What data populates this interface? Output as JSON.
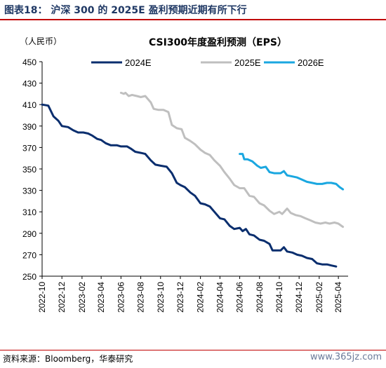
{
  "header": {
    "figure_title": "图表18： 沪深 300 的 2025E 盈利预期近期有所下行"
  },
  "footer": {
    "source": "资料来源：Bloomberg，华泰研究",
    "watermark": "www.365jz.com"
  },
  "colors": {
    "title_rule": "#c00000",
    "series_2024E": "#0a2e6e",
    "series_2025E": "#bfbfbf",
    "series_2026E": "#1aa7e0"
  },
  "chart_data": {
    "type": "line",
    "title": "CSI300年度盈利预测（EPS）",
    "unit": "（人民币）",
    "xlabel": "",
    "ylabel": "",
    "ylim": [
      250,
      450
    ],
    "yticks": [
      "450",
      "430",
      "410",
      "390",
      "370",
      "350",
      "330",
      "310",
      "290",
      "270",
      "250"
    ],
    "xticks": [
      "2022-10",
      "2022-12",
      "2023-02",
      "2023-04",
      "2023-06",
      "2023-08",
      "2023-10",
      "2023-12",
      "2024-02",
      "2024-04",
      "2024-06",
      "2024-08",
      "2024-10",
      "2024-12",
      "2025-02",
      "2025-04"
    ],
    "legend_position": "top",
    "grid": false,
    "series": [
      {
        "name": "2024E",
        "color": "#0a2e6e",
        "points": [
          [
            "2022-10-01",
            410
          ],
          [
            "2022-10-20",
            409
          ],
          [
            "2022-11-05",
            399
          ],
          [
            "2022-11-20",
            395
          ],
          [
            "2022-12-01",
            390
          ],
          [
            "2022-12-20",
            389
          ],
          [
            "2023-01-05",
            386
          ],
          [
            "2023-01-20",
            384
          ],
          [
            "2023-02-05",
            384
          ],
          [
            "2023-02-20",
            383
          ],
          [
            "2023-03-05",
            381
          ],
          [
            "2023-03-20",
            378
          ],
          [
            "2023-04-01",
            377
          ],
          [
            "2023-04-15",
            374
          ],
          [
            "2023-05-01",
            372
          ],
          [
            "2023-05-20",
            372
          ],
          [
            "2023-06-01",
            371
          ],
          [
            "2023-06-20",
            371
          ],
          [
            "2023-07-01",
            369
          ],
          [
            "2023-07-15",
            366
          ],
          [
            "2023-08-01",
            365
          ],
          [
            "2023-08-15",
            364
          ],
          [
            "2023-09-01",
            358
          ],
          [
            "2023-09-15",
            354
          ],
          [
            "2023-10-01",
            353
          ],
          [
            "2023-10-20",
            352
          ],
          [
            "2023-11-05",
            346
          ],
          [
            "2023-11-20",
            337
          ],
          [
            "2023-12-01",
            335
          ],
          [
            "2023-12-15",
            333
          ],
          [
            "2024-01-01",
            328
          ],
          [
            "2024-01-15",
            325
          ],
          [
            "2024-02-01",
            318
          ],
          [
            "2024-02-15",
            317
          ],
          [
            "2024-03-01",
            315
          ],
          [
            "2024-03-15",
            310
          ],
          [
            "2024-04-01",
            304
          ],
          [
            "2024-04-15",
            303
          ],
          [
            "2024-05-01",
            297
          ],
          [
            "2024-05-15",
            294
          ],
          [
            "2024-06-01",
            295
          ],
          [
            "2024-06-10",
            292
          ],
          [
            "2024-06-20",
            294
          ],
          [
            "2024-07-01",
            289
          ],
          [
            "2024-07-15",
            288
          ],
          [
            "2024-08-01",
            284
          ],
          [
            "2024-08-15",
            283
          ],
          [
            "2024-09-01",
            280
          ],
          [
            "2024-09-10",
            274
          ],
          [
            "2024-09-25",
            274
          ],
          [
            "2024-10-05",
            274
          ],
          [
            "2024-10-15",
            277
          ],
          [
            "2024-10-25",
            273
          ],
          [
            "2024-11-10",
            272
          ],
          [
            "2024-11-25",
            270
          ],
          [
            "2024-12-10",
            269
          ],
          [
            "2024-12-25",
            267
          ],
          [
            "2025-01-10",
            266
          ],
          [
            "2025-01-25",
            262
          ],
          [
            "2025-02-10",
            261
          ],
          [
            "2025-02-25",
            261
          ],
          [
            "2025-03-10",
            260
          ],
          [
            "2025-03-25",
            259
          ]
        ]
      },
      {
        "name": "2025E",
        "color": "#bfbfbf",
        "points": [
          [
            "2023-06-01",
            421
          ],
          [
            "2023-06-10",
            420
          ],
          [
            "2023-06-15",
            421
          ],
          [
            "2023-06-25",
            418
          ],
          [
            "2023-07-05",
            419
          ],
          [
            "2023-07-20",
            418
          ],
          [
            "2023-08-01",
            417
          ],
          [
            "2023-08-15",
            418
          ],
          [
            "2023-09-01",
            412
          ],
          [
            "2023-09-10",
            406
          ],
          [
            "2023-09-25",
            405
          ],
          [
            "2023-10-10",
            405
          ],
          [
            "2023-10-25",
            403
          ],
          [
            "2023-11-05",
            391
          ],
          [
            "2023-11-20",
            388
          ],
          [
            "2023-12-05",
            387
          ],
          [
            "2023-12-15",
            379
          ],
          [
            "2024-01-01",
            376
          ],
          [
            "2024-01-15",
            373
          ],
          [
            "2024-02-01",
            368
          ],
          [
            "2024-02-15",
            365
          ],
          [
            "2024-03-01",
            363
          ],
          [
            "2024-03-15",
            358
          ],
          [
            "2024-04-01",
            353
          ],
          [
            "2024-04-15",
            347
          ],
          [
            "2024-05-01",
            341
          ],
          [
            "2024-05-15",
            335
          ],
          [
            "2024-06-01",
            332
          ],
          [
            "2024-06-15",
            332
          ],
          [
            "2024-07-01",
            325
          ],
          [
            "2024-07-15",
            324
          ],
          [
            "2024-08-01",
            318
          ],
          [
            "2024-08-15",
            316
          ],
          [
            "2024-09-01",
            311
          ],
          [
            "2024-09-15",
            308
          ],
          [
            "2024-10-01",
            310
          ],
          [
            "2024-10-10",
            308
          ],
          [
            "2024-10-25",
            313
          ],
          [
            "2024-11-05",
            309
          ],
          [
            "2024-11-20",
            307
          ],
          [
            "2024-12-05",
            306
          ],
          [
            "2024-12-20",
            304
          ],
          [
            "2025-01-05",
            302
          ],
          [
            "2025-01-20",
            300
          ],
          [
            "2025-02-05",
            299
          ],
          [
            "2025-02-20",
            300
          ],
          [
            "2025-03-05",
            299
          ],
          [
            "2025-03-20",
            300
          ],
          [
            "2025-04-01",
            299
          ],
          [
            "2025-04-15",
            296
          ]
        ]
      },
      {
        "name": "2026E",
        "color": "#1aa7e0",
        "points": [
          [
            "2024-06-01",
            364
          ],
          [
            "2024-06-10",
            364
          ],
          [
            "2024-06-15",
            359
          ],
          [
            "2024-06-25",
            359
          ],
          [
            "2024-07-10",
            357
          ],
          [
            "2024-07-25",
            353
          ],
          [
            "2024-08-05",
            351
          ],
          [
            "2024-08-20",
            352
          ],
          [
            "2024-09-01",
            347
          ],
          [
            "2024-09-15",
            346
          ],
          [
            "2024-09-25",
            346
          ],
          [
            "2024-10-05",
            346
          ],
          [
            "2024-10-15",
            348
          ],
          [
            "2024-10-25",
            344
          ],
          [
            "2024-11-10",
            343
          ],
          [
            "2024-11-25",
            342
          ],
          [
            "2024-12-10",
            340
          ],
          [
            "2024-12-25",
            338
          ],
          [
            "2025-01-10",
            337
          ],
          [
            "2025-01-25",
            336
          ],
          [
            "2025-02-10",
            336
          ],
          [
            "2025-02-25",
            337
          ],
          [
            "2025-03-10",
            337
          ],
          [
            "2025-03-25",
            336
          ],
          [
            "2025-04-05",
            333
          ],
          [
            "2025-04-15",
            331
          ]
        ]
      }
    ]
  }
}
